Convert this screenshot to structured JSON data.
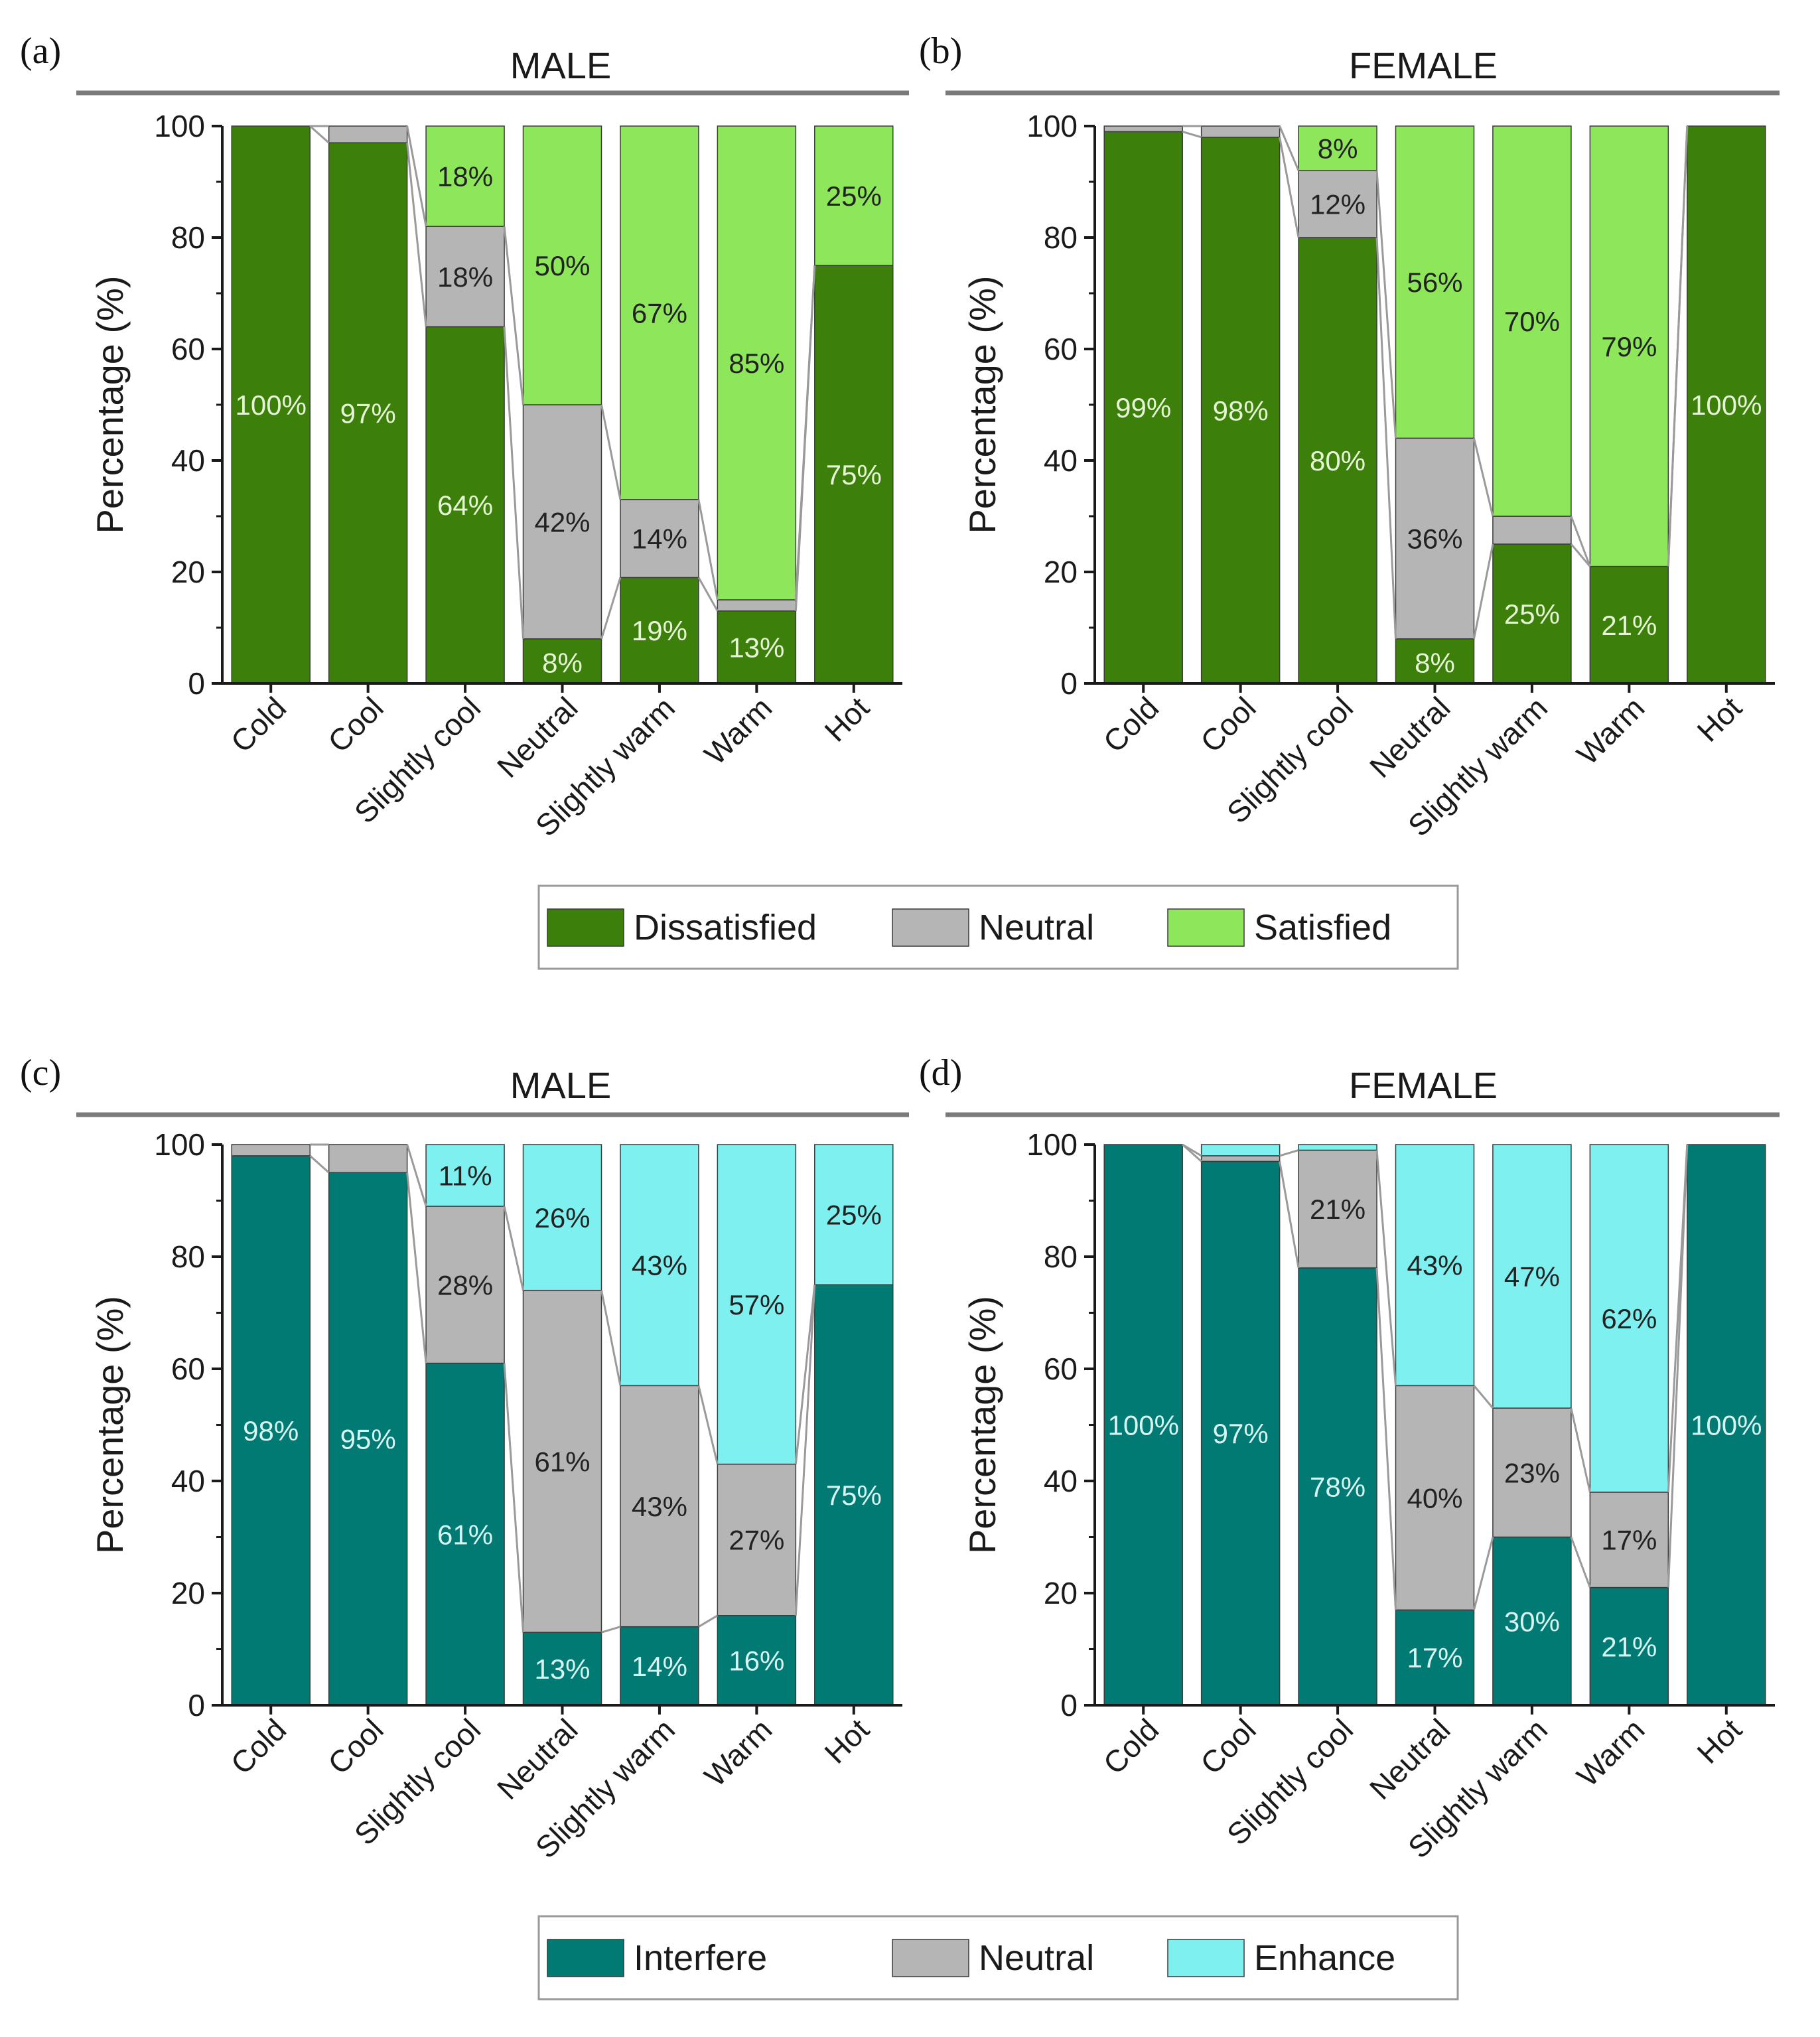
{
  "colors": {
    "dissatisfied": "#3c7f0b",
    "satisfied": "#8ee65a",
    "neutral": "#b5b5b5",
    "interfere": "#007a73",
    "enhance": "#7ff0f0",
    "axis": "#1a1a1a",
    "connector": "#9a9a9a"
  },
  "legends": [
    {
      "entries": [
        {
          "label": "Dissatisfied",
          "color_key": "dissatisfied"
        },
        {
          "label": "Neutral",
          "color_key": "neutral"
        },
        {
          "label": "Satisfied",
          "color_key": "satisfied"
        }
      ]
    },
    {
      "entries": [
        {
          "label": "Interfere",
          "color_key": "interfere"
        },
        {
          "label": "Neutral",
          "color_key": "neutral"
        },
        {
          "label": "Enhance",
          "color_key": "enhance"
        }
      ]
    }
  ],
  "chart_data": [
    {
      "type": "bar",
      "stacked": true,
      "panel_label": "(a)",
      "title": "MALE",
      "ylabel": "Percentage (%)",
      "ylim": [
        0,
        100
      ],
      "yticks": [
        "0",
        "20",
        "40",
        "60",
        "80",
        "100"
      ],
      "categories": [
        "Cold",
        "Cool",
        "Slightly cool",
        "Neutral",
        "Slightly warm",
        "Warm",
        "Hot"
      ],
      "series": [
        {
          "name": "Dissatisfied",
          "color_key": "dissatisfied",
          "label_color": "#e6f5d6",
          "values": [
            100,
            97,
            64,
            8,
            19,
            13,
            75
          ],
          "labels": [
            "100%",
            "97%",
            "64%",
            "8%",
            "19%",
            "13%",
            "75%"
          ]
        },
        {
          "name": "Neutral",
          "color_key": "neutral",
          "label_color": "#222222",
          "values": [
            0,
            3,
            18,
            42,
            14,
            2,
            0
          ],
          "labels": [
            "",
            "",
            "18%",
            "42%",
            "14%",
            "",
            ""
          ]
        },
        {
          "name": "Satisfied",
          "color_key": "satisfied",
          "label_color": "#222222",
          "values": [
            0,
            0,
            18,
            50,
            67,
            85,
            25
          ],
          "labels": [
            "",
            "",
            "18%",
            "50%",
            "67%",
            "85%",
            "25%"
          ]
        }
      ]
    },
    {
      "type": "bar",
      "stacked": true,
      "panel_label": "(b)",
      "title": "FEMALE",
      "ylabel": "Percentage (%)",
      "ylim": [
        0,
        100
      ],
      "yticks": [
        "0",
        "20",
        "40",
        "60",
        "80",
        "100"
      ],
      "categories": [
        "Cold",
        "Cool",
        "Slightly cool",
        "Neutral",
        "Slightly warm",
        "Warm",
        "Hot"
      ],
      "series": [
        {
          "name": "Dissatisfied",
          "color_key": "dissatisfied",
          "label_color": "#e6f5d6",
          "values": [
            99,
            98,
            80,
            8,
            25,
            21,
            100
          ],
          "labels": [
            "99%",
            "98%",
            "80%",
            "8%",
            "25%",
            "21%",
            "100%"
          ]
        },
        {
          "name": "Neutral",
          "color_key": "neutral",
          "label_color": "#222222",
          "values": [
            1,
            2,
            12,
            36,
            5,
            0,
            0
          ],
          "labels": [
            "",
            "",
            "12%",
            "36%",
            "",
            "",
            ""
          ]
        },
        {
          "name": "Satisfied",
          "color_key": "satisfied",
          "label_color": "#222222",
          "values": [
            0,
            0,
            8,
            56,
            70,
            79,
            0
          ],
          "labels": [
            "",
            "",
            "8%",
            "56%",
            "70%",
            "79%",
            ""
          ]
        }
      ]
    },
    {
      "type": "bar",
      "stacked": true,
      "panel_label": "(c)",
      "title": "MALE",
      "ylabel": "Percentage (%)",
      "ylim": [
        0,
        100
      ],
      "yticks": [
        "0",
        "20",
        "40",
        "60",
        "80",
        "100"
      ],
      "categories": [
        "Cold",
        "Cool",
        "Slightly cool",
        "Neutral",
        "Slightly warm",
        "Warm",
        "Hot"
      ],
      "series": [
        {
          "name": "Interfere",
          "color_key": "interfere",
          "label_color": "#d8f4f2",
          "values": [
            98,
            95,
            61,
            13,
            14,
            16,
            75
          ],
          "labels": [
            "98%",
            "95%",
            "61%",
            "13%",
            "14%",
            "16%",
            "75%"
          ]
        },
        {
          "name": "Neutral",
          "color_key": "neutral",
          "label_color": "#222222",
          "values": [
            2,
            5,
            28,
            61,
            43,
            27,
            0
          ],
          "labels": [
            "",
            "",
            "28%",
            "61%",
            "43%",
            "27%",
            ""
          ]
        },
        {
          "name": "Enhance",
          "color_key": "enhance",
          "label_color": "#222222",
          "values": [
            0,
            0,
            11,
            26,
            43,
            57,
            25
          ],
          "labels": [
            "",
            "",
            "11%",
            "26%",
            "43%",
            "57%",
            "25%"
          ]
        }
      ]
    },
    {
      "type": "bar",
      "stacked": true,
      "panel_label": "(d)",
      "title": "FEMALE",
      "ylabel": "Percentage (%)",
      "ylim": [
        0,
        100
      ],
      "yticks": [
        "0",
        "20",
        "40",
        "60",
        "80",
        "100"
      ],
      "categories": [
        "Cold",
        "Cool",
        "Slightly cool",
        "Neutral",
        "Slightly warm",
        "Warm",
        "Hot"
      ],
      "series": [
        {
          "name": "Interfere",
          "color_key": "interfere",
          "label_color": "#d8f4f2",
          "values": [
            100,
            97,
            78,
            17,
            30,
            21,
            100
          ],
          "labels": [
            "100%",
            "97%",
            "78%",
            "17%",
            "30%",
            "21%",
            "100%"
          ]
        },
        {
          "name": "Neutral",
          "color_key": "neutral",
          "label_color": "#222222",
          "values": [
            0,
            1,
            21,
            40,
            23,
            17,
            0
          ],
          "labels": [
            "",
            "",
            "21%",
            "40%",
            "23%",
            "17%",
            ""
          ]
        },
        {
          "name": "Enhance",
          "color_key": "enhance",
          "label_color": "#222222",
          "values": [
            0,
            2,
            1,
            43,
            47,
            62,
            0
          ],
          "labels": [
            "",
            "",
            "",
            "43%",
            "47%",
            "62%",
            ""
          ]
        }
      ]
    }
  ]
}
